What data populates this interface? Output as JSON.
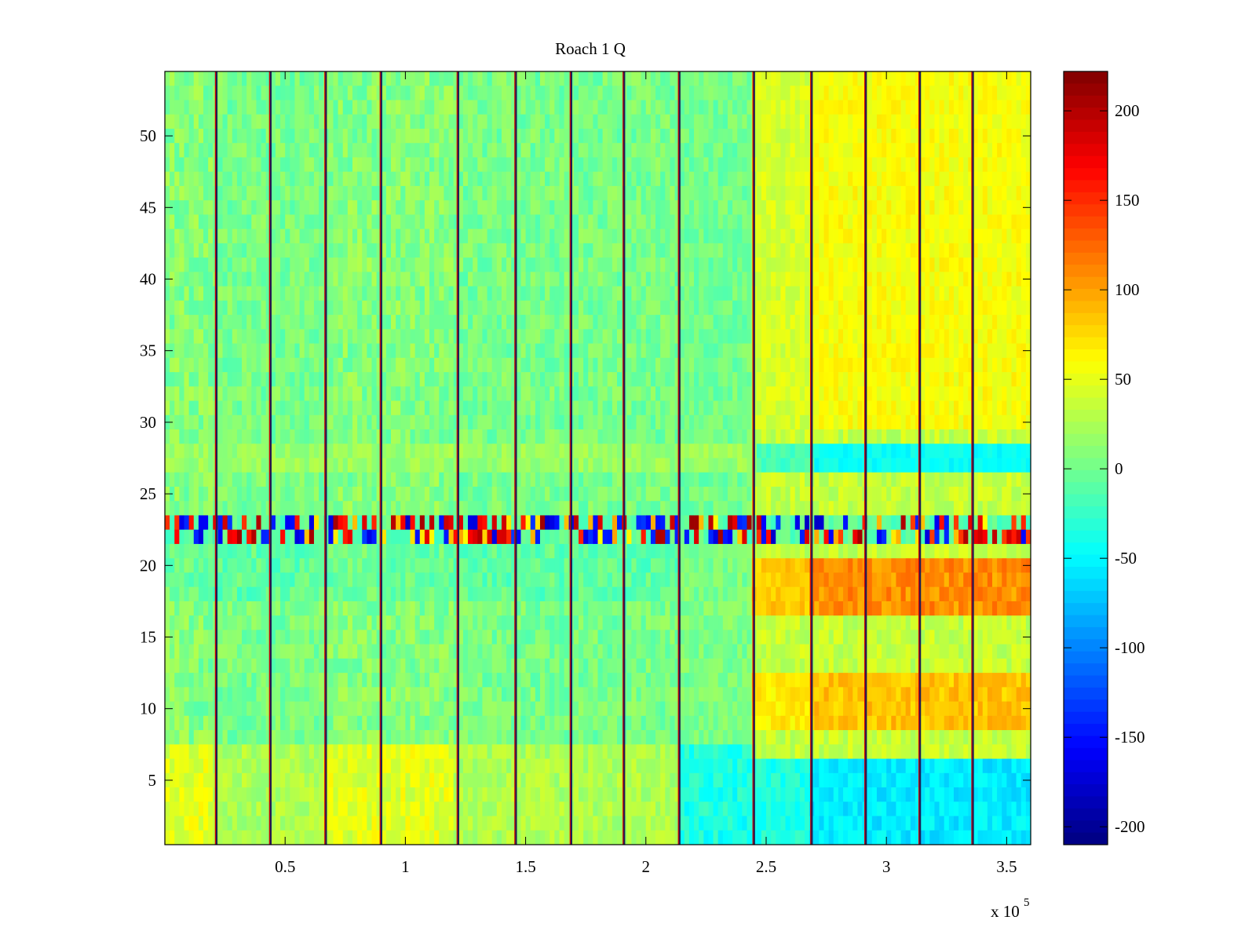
{
  "chart_data": {
    "type": "heatmap",
    "title": "Roach 1 Q",
    "xlabel": "",
    "ylabel": "",
    "x_exponent_label": {
      "prefix": "x 10",
      "exponent": "5"
    },
    "xlim": [
      0.0,
      3.6
    ],
    "ylim": [
      0.5,
      54.5
    ],
    "x_ticks": [
      0.5,
      1.0,
      1.5,
      2.0,
      2.5,
      3.0,
      3.5
    ],
    "x_tick_labels": [
      "0.5",
      "1",
      "1.5",
      "2",
      "2.5",
      "3",
      "3.5"
    ],
    "y_ticks": [
      5,
      10,
      15,
      20,
      25,
      30,
      35,
      40,
      45,
      50
    ],
    "y_tick_labels": [
      "5",
      "10",
      "15",
      "20",
      "25",
      "30",
      "35",
      "40",
      "45",
      "50"
    ],
    "rows": 54,
    "colormap": "jet",
    "colorbar": {
      "range": [
        -210,
        222
      ],
      "ticks": [
        200,
        150,
        100,
        50,
        0,
        -50,
        -100,
        -150,
        -200
      ],
      "tick_labels": [
        "200",
        "150",
        "100",
        "50",
        "0",
        "-50",
        "-100",
        "-150",
        "-200"
      ]
    },
    "segment_boundaries_x": [
      0.215,
      0.44,
      0.67,
      0.9,
      1.22,
      1.46,
      1.69,
      1.91,
      2.14,
      2.45,
      2.69,
      2.915,
      3.14,
      3.36
    ],
    "time_blocks": [
      {
        "x": [
          0.0,
          0.215
        ],
        "profile": "low-band-warm"
      },
      {
        "x": [
          0.215,
          0.44
        ],
        "profile": "neutral"
      },
      {
        "x": [
          0.44,
          0.67
        ],
        "profile": "neutral"
      },
      {
        "x": [
          0.67,
          0.9
        ],
        "profile": "low-band-warm"
      },
      {
        "x": [
          0.9,
          1.22
        ],
        "profile": "low-band-warm"
      },
      {
        "x": [
          1.22,
          1.46
        ],
        "profile": "neutral"
      },
      {
        "x": [
          1.46,
          1.69
        ],
        "profile": "neutral"
      },
      {
        "x": [
          1.69,
          1.91
        ],
        "profile": "neutral"
      },
      {
        "x": [
          1.91,
          2.14
        ],
        "profile": "neutral"
      },
      {
        "x": [
          2.14,
          2.45
        ],
        "profile": "low-band-cool"
      },
      {
        "x": [
          2.45,
          2.69
        ],
        "profile": "split"
      },
      {
        "x": [
          2.69,
          2.915
        ],
        "profile": "split-strong"
      },
      {
        "x": [
          2.915,
          3.14
        ],
        "profile": "split-strong"
      },
      {
        "x": [
          3.14,
          3.36
        ],
        "profile": "split-strong"
      },
      {
        "x": [
          3.36,
          3.6
        ],
        "profile": "split-strong"
      }
    ],
    "row_bands": [
      {
        "y": [
          22,
          23
        ],
        "description": "alternating high/low spikes",
        "min": -200,
        "max": 200
      },
      {
        "y": [
          27,
          28
        ],
        "description": "cool stripe after 2.7e5",
        "value": -50
      },
      {
        "y": [
          17,
          20
        ],
        "description": "warm band after 2.5e5",
        "value": 90
      },
      {
        "y": [
          9,
          12
        ],
        "description": "warm band after 2.6e5",
        "value": 70
      },
      {
        "y": [
          1,
          7
        ],
        "description": "cool band after 2.2e5",
        "value": -60
      }
    ]
  }
}
